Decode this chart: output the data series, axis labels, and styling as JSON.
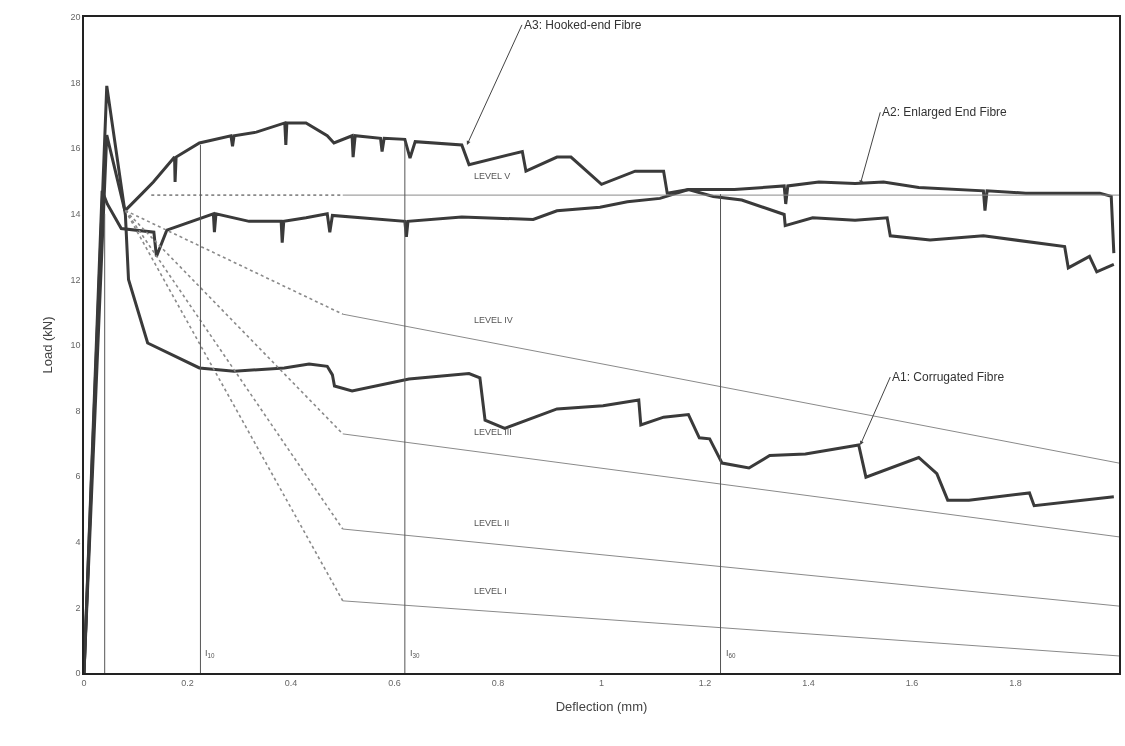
{
  "chart_data": {
    "type": "line",
    "xlabel": "Deflection (mm)",
    "ylabel": "Load (kN)",
    "xlim": [
      0,
      2
    ],
    "ylim": [
      0,
      20
    ],
    "xticks": [
      0,
      0.2,
      0.4,
      0.6,
      0.8,
      1,
      1.2,
      1.4,
      1.6,
      1.8
    ],
    "yticks": [
      0,
      2,
      4,
      6,
      8,
      10,
      12,
      14,
      16,
      18,
      20
    ],
    "grid": false,
    "marker": "none",
    "series": [
      {
        "color": "#3a3a3a",
        "line_style": "solid",
        "x": [
          0,
          0.044,
          0.079,
          0.113,
          0.134,
          0.175,
          0.176,
          0.178,
          0.223,
          0.284,
          0.287,
          0.29,
          0.333,
          0.388,
          0.39,
          0.392,
          0.429,
          0.47,
          0.483,
          0.518,
          0.52,
          0.524,
          0.573,
          0.576,
          0.58,
          0.62,
          0.63,
          0.64,
          0.73,
          0.744,
          0.847,
          0.854,
          0.914,
          0.941,
          1.0,
          1.065,
          1.12,
          1.127,
          1.168,
          1.216,
          1.271,
          1.353,
          1.355,
          1.408,
          1.49,
          1.552,
          1.558,
          1.635,
          1.738,
          1.895,
          1.902,
          1.943,
          1.957,
          1.99
        ],
        "values": [
          0,
          16.4,
          14.09,
          14.63,
          14.97,
          15.73,
          14.97,
          15.73,
          16.16,
          16.38,
          16.06,
          16.38,
          16.49,
          16.77,
          16.1,
          16.77,
          16.77,
          16.38,
          16.16,
          16.38,
          15.73,
          16.38,
          16.3,
          15.9,
          16.3,
          16.27,
          15.7,
          16.2,
          16.1,
          15.5,
          15.9,
          15.3,
          15.73,
          15.73,
          14.9,
          15.3,
          15.3,
          14.63,
          14.74,
          14.53,
          14.42,
          13.98,
          13.64,
          13.88,
          13.8,
          13.88,
          13.33,
          13.2,
          13.33,
          13.0,
          12.35,
          12.7,
          12.23,
          12.46
        ]
      },
      {
        "color": "#3a3a3a",
        "line_style": "solid",
        "x": [
          0,
          0.035,
          0.045,
          0.072,
          0.135,
          0.14,
          0.16,
          0.25,
          0.252,
          0.255,
          0.319,
          0.381,
          0.383,
          0.386,
          0.429,
          0.47,
          0.475,
          0.48,
          0.62,
          0.623,
          0.626,
          0.73,
          0.868,
          0.914,
          0.997,
          1.05,
          1.113,
          1.168,
          1.257,
          1.353,
          1.356,
          1.36,
          1.42,
          1.49,
          1.545,
          1.613,
          1.738,
          1.741,
          1.745,
          1.82,
          1.963,
          1.985,
          1.99
        ],
        "values": [
          0,
          14.7,
          14.3,
          13.55,
          13.44,
          12.7,
          13.5,
          14.0,
          13.44,
          14.0,
          13.77,
          13.77,
          13.12,
          13.77,
          13.88,
          14.0,
          13.44,
          13.95,
          13.77,
          13.3,
          13.77,
          13.9,
          13.83,
          14.09,
          14.2,
          14.37,
          14.47,
          14.74,
          14.74,
          14.85,
          14.3,
          14.85,
          14.97,
          14.92,
          14.97,
          14.8,
          14.7,
          14.1,
          14.7,
          14.63,
          14.63,
          14.53,
          12.8
        ]
      },
      {
        "color": "#3a3a3a",
        "line_style": "solid",
        "x": [
          0,
          0.044,
          0.08,
          0.086,
          0.123,
          0.223,
          0.29,
          0.387,
          0.435,
          0.47,
          0.48,
          0.484,
          0.518,
          0.628,
          0.744,
          0.765,
          0.775,
          0.813,
          0.914,
          1.003,
          1.072,
          1.076,
          1.12,
          1.168,
          1.189,
          1.209,
          1.233,
          1.285,
          1.325,
          1.394,
          1.497,
          1.511,
          1.613,
          1.648,
          1.669,
          1.71,
          1.827,
          1.836,
          1.99
        ],
        "values": [
          0,
          17.9,
          13.96,
          12.0,
          10.06,
          9.3,
          9.2,
          9.3,
          9.42,
          9.35,
          9.09,
          8.75,
          8.6,
          8.96,
          9.13,
          9.0,
          7.71,
          7.46,
          8.05,
          8.15,
          8.32,
          7.56,
          7.8,
          7.88,
          7.17,
          7.14,
          6.4,
          6.25,
          6.63,
          6.68,
          6.95,
          5.97,
          6.57,
          6.08,
          5.27,
          5.27,
          5.49,
          5.1,
          5.37
        ]
      },
      {
        "color": "#8a8a8a",
        "line_style": "dotted",
        "x": [
          0.13,
          0.5
        ],
        "values": [
          14.57,
          14.57
        ]
      },
      {
        "color": "#8a8a8a",
        "line_style": "solid",
        "x": [
          0.5,
          2.0
        ],
        "values": [
          14.57,
          14.57
        ]
      },
      {
        "color": "#8a8a8a",
        "line_style": "dotted",
        "x": [
          0.08,
          0.5
        ],
        "values": [
          14.1,
          10.94
        ]
      },
      {
        "color": "#8a8a8a",
        "line_style": "solid",
        "x": [
          0.5,
          2.0
        ],
        "values": [
          10.94,
          6.4
        ]
      },
      {
        "color": "#8a8a8a",
        "line_style": "dotted",
        "x": [
          0.08,
          0.5
        ],
        "values": [
          14.1,
          7.29
        ]
      },
      {
        "color": "#8a8a8a",
        "line_style": "solid",
        "x": [
          0.5,
          2.0
        ],
        "values": [
          7.29,
          4.15
        ]
      },
      {
        "color": "#8a8a8a",
        "line_style": "dotted",
        "x": [
          0.08,
          0.5
        ],
        "values": [
          14.1,
          4.39
        ]
      },
      {
        "color": "#8a8a8a",
        "line_style": "solid",
        "x": [
          0.5,
          2.0
        ],
        "values": [
          4.39,
          2.04
        ]
      },
      {
        "color": "#8a8a8a",
        "line_style": "dotted",
        "x": [
          0.08,
          0.5
        ],
        "values": [
          14.1,
          2.2
        ]
      },
      {
        "color": "#8a8a8a",
        "line_style": "solid",
        "x": [
          0.5,
          2.0
        ],
        "values": [
          2.2,
          0.52
        ]
      },
      {
        "color": "#555555",
        "line_style": "solid",
        "x": [
          0.04,
          0.04
        ],
        "values": [
          0,
          14.0
        ]
      },
      {
        "color": "#555555",
        "line_style": "solid",
        "x": [
          0.225,
          0.225
        ],
        "values": [
          0,
          16.1
        ]
      },
      {
        "color": "#555555",
        "line_style": "solid",
        "x": [
          0.62,
          0.62
        ],
        "values": [
          0,
          16.2
        ]
      },
      {
        "color": "#555555",
        "line_style": "solid",
        "x": [
          1.23,
          1.23
        ],
        "values": [
          0,
          14.6
        ]
      }
    ],
    "annotations": [
      {
        "text": "A3: Hooked-end Fibre",
        "x": 0.74,
        "y": 16.1
      },
      {
        "text": "A2: Enlarged End Fibre",
        "x": 1.5,
        "y": 14.9
      },
      {
        "text": "A1: Corrugated Fibre",
        "x": 1.5,
        "y": 6.95
      },
      {
        "text": "LEVEL V",
        "x": 0.75,
        "y": 14.57
      },
      {
        "text": "LEVEL IV",
        "x": 0.75,
        "y": 10.18
      },
      {
        "text": "LEVEL III",
        "x": 0.75,
        "y": 6.77
      },
      {
        "text": "LEVEL II",
        "x": 0.75,
        "y": 4.0
      },
      {
        "text": "LEVEL I",
        "x": 0.75,
        "y": 1.92
      },
      {
        "text": "I$_{10}$",
        "x": 0.225,
        "y": 0.6
      },
      {
        "text": "I$_{30}$",
        "x": 0.62,
        "y": 0.6
      },
      {
        "text": "I$_{60}$",
        "x": 1.23,
        "y": 0.6
      }
    ]
  }
}
